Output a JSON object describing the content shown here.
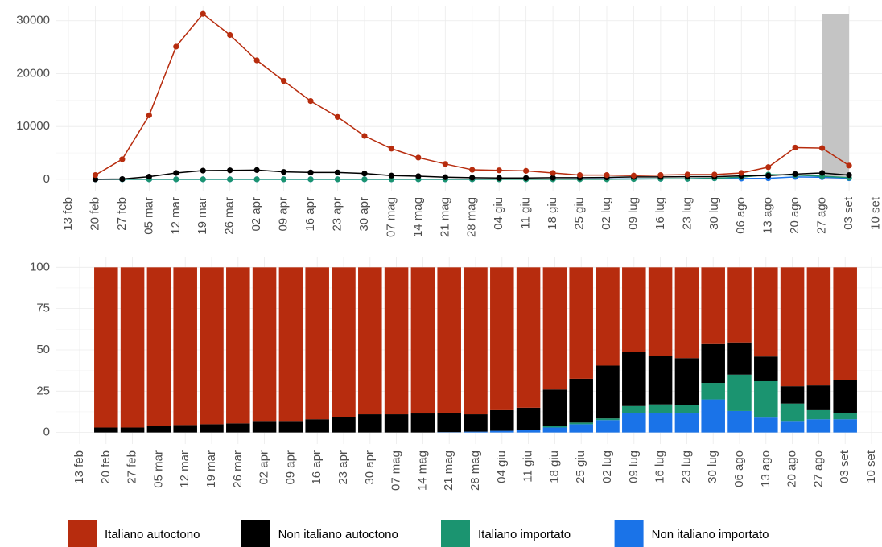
{
  "chart_data": [
    {
      "type": "line",
      "categories": [
        "13 feb",
        "20 feb",
        "27 feb",
        "05 mar",
        "12 mar",
        "19 mar",
        "26 mar",
        "02 apr",
        "09 apr",
        "16 apr",
        "23 apr",
        "30 apr",
        "07 mag",
        "14 mag",
        "21 mag",
        "28 mag",
        "04 giu",
        "11 giu",
        "18 giu",
        "25 giu",
        "02 lug",
        "09 lug",
        "16 lug",
        "23 lug",
        "30 lug",
        "06 ago",
        "13 ago",
        "20 ago",
        "27 ago",
        "03 set",
        "10 set"
      ],
      "series": [
        {
          "color": "#b72c0e",
          "values": [
            null,
            800,
            3800,
            12100,
            25100,
            31300,
            27300,
            22500,
            18600,
            14800,
            11800,
            8200,
            5800,
            4100,
            2900,
            1800,
            1700,
            1600,
            1200,
            800,
            800,
            700,
            800,
            900,
            900,
            1200,
            2300,
            6000,
            5900,
            2600,
            null
          ]
        },
        {
          "color": "#000000",
          "values": [
            null,
            0,
            50,
            500,
            1200,
            1650,
            1700,
            1750,
            1400,
            1300,
            1300,
            1100,
            700,
            600,
            400,
            300,
            250,
            250,
            300,
            300,
            350,
            450,
            450,
            500,
            500,
            650,
            700,
            1000,
            1200,
            800,
            null
          ]
        },
        {
          "color": "#1b9470",
          "values": [
            null,
            0,
            0,
            0,
            0,
            0,
            0,
            0,
            0,
            0,
            0,
            0,
            0,
            0,
            0,
            0,
            0,
            0,
            0,
            0,
            0,
            50,
            100,
            100,
            200,
            400,
            900,
            800,
            600,
            300,
            null
          ]
        },
        {
          "color": "#1a73e8",
          "values": [
            null,
            0,
            0,
            0,
            0,
            0,
            0,
            0,
            0,
            0,
            0,
            0,
            0,
            0,
            5,
            10,
            20,
            20,
            30,
            40,
            60,
            80,
            100,
            100,
            200,
            150,
            200,
            450,
            400,
            200,
            null
          ]
        }
      ],
      "shaded": [
        "27 ago",
        "03 set"
      ],
      "ylim": [
        -2300,
        32700
      ],
      "yticks": [
        0,
        10000,
        20000,
        30000
      ],
      "grid": true
    },
    {
      "type": "stacked_bar",
      "categories": [
        "13 feb",
        "20 feb",
        "27 feb",
        "05 mar",
        "12 mar",
        "19 mar",
        "26 mar",
        "02 apr",
        "09 apr",
        "16 apr",
        "23 apr",
        "30 apr",
        "07 mag",
        "14 mag",
        "21 mag",
        "28 mag",
        "04 giu",
        "11 giu",
        "18 giu",
        "25 giu",
        "02 lug",
        "09 lug",
        "16 lug",
        "23 lug",
        "30 lug",
        "06 ago",
        "13 ago",
        "20 ago",
        "27 ago",
        "03 set",
        "10 set"
      ],
      "series": [
        {
          "name": "Non italiano importato",
          "color": "#1a73e8",
          "values": [
            null,
            0,
            0,
            0,
            0,
            0,
            0,
            0,
            0,
            0,
            0,
            0,
            0,
            0,
            0.2,
            0.5,
            1,
            1.5,
            3,
            5,
            7.5,
            12,
            12,
            11.5,
            20,
            13,
            9,
            7,
            8,
            8,
            null
          ]
        },
        {
          "name": "Italiano importato",
          "color": "#1b9470",
          "values": [
            null,
            0,
            0,
            0,
            0,
            0,
            0,
            0,
            0,
            0,
            0,
            0,
            0,
            0,
            0,
            0,
            0,
            0,
            1,
            1,
            1,
            4,
            5,
            5,
            10,
            22,
            22,
            10.5,
            5.5,
            4,
            null
          ]
        },
        {
          "name": "Non italiano autoctono",
          "color": "#000000",
          "values": [
            null,
            3,
            3,
            4,
            4.5,
            5,
            5.5,
            7,
            7,
            8,
            9.5,
            11,
            11,
            11.5,
            11.8,
            10.5,
            12.5,
            13.5,
            22,
            26.5,
            32,
            33,
            29.5,
            28.5,
            23.5,
            19.5,
            15,
            10.5,
            15,
            19.5,
            null
          ]
        },
        {
          "name": "Italiano autoctono",
          "color": "#b72c0e",
          "values": [
            null,
            97,
            97,
            96,
            95.5,
            95,
            94.5,
            93,
            93,
            92,
            90.5,
            89,
            89,
            88.5,
            88,
            89,
            86.5,
            85,
            74,
            67.5,
            59.5,
            51,
            53.5,
            55,
            46.5,
            45.5,
            54,
            72,
            71.5,
            68.5,
            null
          ]
        }
      ],
      "legend": "bottom",
      "ylim": [
        -7,
        106
      ],
      "yticks": [
        0,
        25,
        50,
        75,
        100
      ],
      "grid": true
    }
  ]
}
